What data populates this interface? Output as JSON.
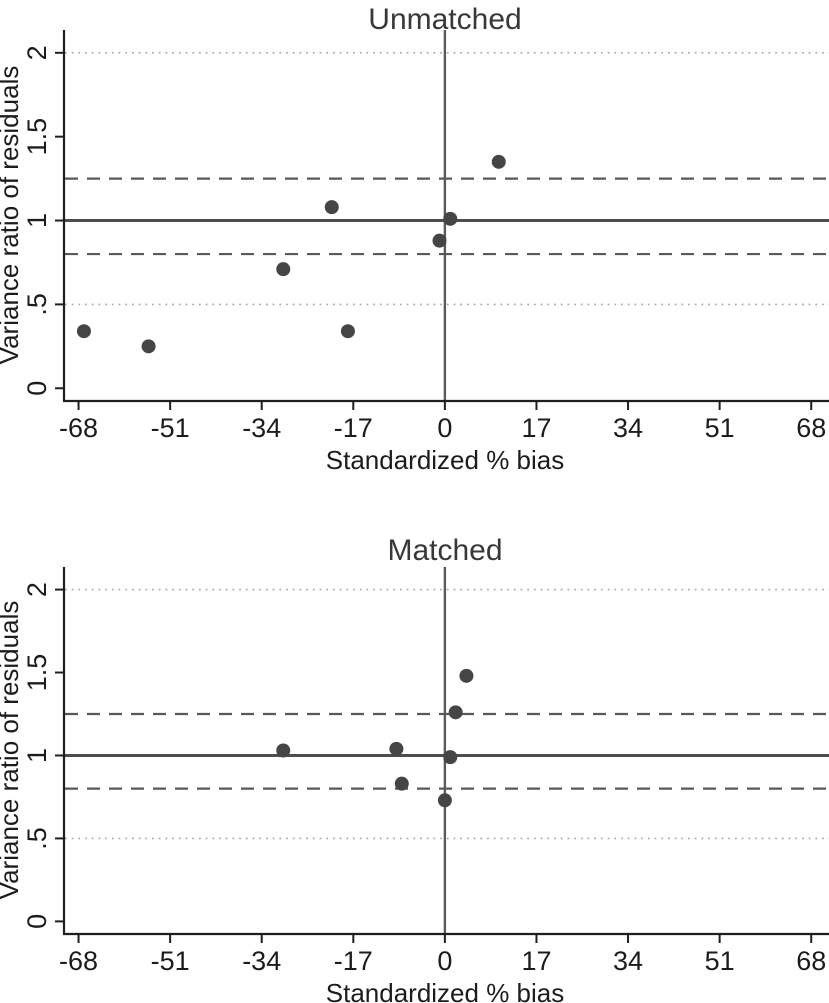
{
  "chart_data": [
    {
      "type": "scatter",
      "panel": "top",
      "title": "Unmatched",
      "xlabel": "Standardized % bias",
      "ylabel": "Variance ratio of residuals",
      "x_ticks": [
        -68,
        -51,
        -34,
        -17,
        0,
        17,
        34,
        51,
        68
      ],
      "x_tick_labels": [
        "-68",
        "-51",
        "-34",
        "-17",
        "0",
        "17",
        "34",
        "51",
        "68"
      ],
      "y_ticks": [
        0,
        0.5,
        1,
        1.5,
        2
      ],
      "y_tick_labels": [
        "0",
        ".5",
        "1",
        "1.5",
        "2"
      ],
      "xlim": [
        -70.7,
        71.3
      ],
      "ylim": [
        -0.07,
        2.13
      ],
      "legend": "none",
      "grid": "reference-lines-only",
      "ref_lines": {
        "solid_y": 1,
        "dashed_y": [
          0.8,
          1.25
        ],
        "dotted_y": [
          0.5,
          2
        ],
        "vline_x": 0
      },
      "points": [
        {
          "x": -67,
          "y": 0.34
        },
        {
          "x": -55,
          "y": 0.25
        },
        {
          "x": -30,
          "y": 0.71
        },
        {
          "x": -21,
          "y": 1.08
        },
        {
          "x": -18,
          "y": 0.34
        },
        {
          "x": -1,
          "y": 0.88
        },
        {
          "x": 1,
          "y": 1.01
        },
        {
          "x": 10,
          "y": 1.35
        }
      ]
    },
    {
      "type": "scatter",
      "panel": "bottom",
      "title": "Matched",
      "xlabel": "Standardized % bias",
      "ylabel": "Variance ratio of residuals",
      "x_ticks": [
        -68,
        -51,
        -34,
        -17,
        0,
        17,
        34,
        51,
        68
      ],
      "x_tick_labels": [
        "-68",
        "-51",
        "-34",
        "-17",
        "0",
        "17",
        "34",
        "51",
        "68"
      ],
      "y_ticks": [
        0,
        0.5,
        1,
        1.5,
        2
      ],
      "y_tick_labels": [
        "0",
        ".5",
        "1",
        "1.5",
        "2"
      ],
      "xlim": [
        -70.7,
        71.3
      ],
      "ylim": [
        -0.07,
        2.13
      ],
      "legend": "none",
      "grid": "reference-lines-only",
      "ref_lines": {
        "solid_y": 1,
        "dashed_y": [
          0.8,
          1.25
        ],
        "dotted_y": [
          0.5,
          2
        ],
        "vline_x": 0
      },
      "points": [
        {
          "x": -30,
          "y": 1.03
        },
        {
          "x": -9,
          "y": 1.04
        },
        {
          "x": -8,
          "y": 0.83
        },
        {
          "x": 0,
          "y": 0.73
        },
        {
          "x": 1,
          "y": 0.99
        },
        {
          "x": 2,
          "y": 1.26
        },
        {
          "x": 4,
          "y": 1.48
        }
      ]
    }
  ],
  "colors": {
    "background": "#ffffff",
    "point": "#454545",
    "solid_ref_line": "#4d4d4d",
    "dashed_ref_line": "#595959",
    "dotted_ref_line": "#a6a6a6",
    "zero_line": "#5a5a5a",
    "axis": "#1f1f1f",
    "title_text": "#383838",
    "label_text": "#1c1c1c"
  }
}
